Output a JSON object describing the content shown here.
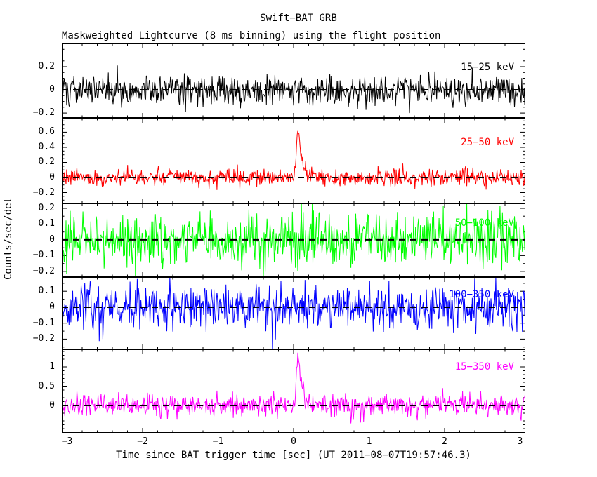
{
  "figure": {
    "title": "Swift−BAT GRB",
    "subtitle": "Maskweighted Lightcurve (8 ms binning) using the flight position",
    "y_axis_label": "Counts/sec/det",
    "x_axis_label": "Time since BAT trigger time [sec] (UT 2011−08−07T19:57:46.3)",
    "background_color": "#ffffff",
    "frame_color": "#000000"
  },
  "chart_data": {
    "type": "line",
    "title": "Swift−BAT GRB",
    "subtitle": "Maskweighted Lightcurve (8 ms binning) using the flight position",
    "xlabel": "Time since BAT trigger time [sec]",
    "ylabel": "Counts/sec/det",
    "trigger_time_ut": "2011−08−07T19:57:46.3",
    "bin_seconds": 0.008,
    "xlim": [
      -3.07,
      3.07
    ],
    "x_minor_step": 0.2,
    "xticks": [
      {
        "v": -3,
        "label": "−3"
      },
      {
        "v": -2,
        "label": "−2"
      },
      {
        "v": -1,
        "label": "−1"
      },
      {
        "v": 0,
        "label": "0"
      },
      {
        "v": 1,
        "label": "1"
      },
      {
        "v": 2,
        "label": "2"
      },
      {
        "v": 3,
        "label": "3"
      }
    ],
    "panels": [
      {
        "name": "15-25kev",
        "label": "15−25 keV",
        "color": "#000000",
        "ylim": [
          -0.242,
          0.4
        ],
        "yticks": [
          {
            "v": 0.2,
            "label": "0.2"
          },
          {
            "v": 0,
            "label": "0"
          },
          {
            "v": -0.2,
            "label": "−0.2"
          }
        ],
        "y_minor_step": 0.05,
        "noise_sigma": 0.065,
        "seed": 101,
        "burst": null
      },
      {
        "name": "25-50kev",
        "label": "25−50 keV",
        "color": "#ff0000",
        "ylim": [
          -0.344,
          0.79
        ],
        "yticks": [
          {
            "v": 0.6,
            "label": "0.6"
          },
          {
            "v": 0.4,
            "label": "0.4"
          },
          {
            "v": 0.2,
            "label": "0.2"
          },
          {
            "v": 0,
            "label": "0"
          },
          {
            "v": -0.2,
            "label": "−0.2"
          }
        ],
        "y_minor_step": 0.05,
        "noise_sigma": 0.055,
        "seed": 202,
        "burst": {
          "t_peak": 0.06,
          "amplitude": 0.7,
          "rise_sigma": 0.02,
          "decay_tau": 0.05
        }
      },
      {
        "name": "50-100kev",
        "label": "50−100 keV",
        "color": "#00ff00",
        "ylim": [
          -0.236,
          0.231
        ],
        "yticks": [
          {
            "v": 0.2,
            "label": "0.2"
          },
          {
            "v": 0.1,
            "label": "0.1"
          },
          {
            "v": 0,
            "label": "0"
          },
          {
            "v": -0.1,
            "label": "−0.1"
          },
          {
            "v": -0.2,
            "label": "−0.2"
          }
        ],
        "y_minor_step": 0.05,
        "noise_sigma": 0.078,
        "seed": 303,
        "burst": null
      },
      {
        "name": "100-350kev",
        "label": "100−350 keV",
        "color": "#0000ff",
        "ylim": [
          -0.264,
          0.189
        ],
        "yticks": [
          {
            "v": 0.1,
            "label": "0.1"
          },
          {
            "v": 0,
            "label": "0"
          },
          {
            "v": -0.1,
            "label": "−0.1"
          },
          {
            "v": -0.2,
            "label": "−0.2"
          }
        ],
        "y_minor_step": 0.05,
        "noise_sigma": 0.07,
        "seed": 404,
        "burst": null
      },
      {
        "name": "15-350kev",
        "label": "15−350 keV",
        "color": "#ff00ff",
        "ylim": [
          -0.709,
          1.455
        ],
        "yticks": [
          {
            "v": 1,
            "label": "1"
          },
          {
            "v": 0.5,
            "label": "0.5"
          },
          {
            "v": 0,
            "label": "0"
          }
        ],
        "y_minor_step": 0.1,
        "noise_sigma": 0.15,
        "seed": 505,
        "burst": {
          "t_peak": 0.06,
          "amplitude": 1.33,
          "rise_sigma": 0.02,
          "decay_tau": 0.05
        }
      }
    ]
  }
}
